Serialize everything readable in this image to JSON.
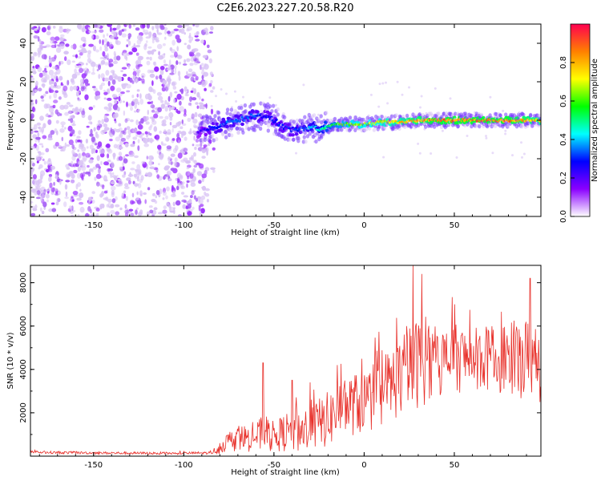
{
  "title": "C2E6.2023.227.20.58.R20",
  "colors": {
    "spectrum_low": "#9b30ff",
    "spectrum_pale": "#d9c4f5",
    "snr_line": "#e8302a",
    "axis": "#000000"
  },
  "chart_data": [
    {
      "type": "heatmap",
      "title": "C2E6.2023.227.20.58.R20",
      "xlabel": "Height of straight line (km)",
      "ylabel": "Frequency (Hz)",
      "xlim": [
        -185,
        98
      ],
      "ylim": [
        -50,
        50
      ],
      "x_ticks": [
        -150,
        -100,
        -50,
        0,
        50
      ],
      "y_ticks": [
        -40,
        -20,
        0,
        20,
        40
      ],
      "colorbar": {
        "label": "Normalized spectral amplitude",
        "range": [
          0,
          1
        ],
        "ticks": [
          "0.0",
          "0.2",
          "0.4",
          "0.6",
          "0.8"
        ],
        "stops": [
          "#ffffff",
          "#8a00ff",
          "#0000ff",
          "#00ffff",
          "#00ff00",
          "#ffff00",
          "#ff8000",
          "#ff0050"
        ]
      },
      "noise_region_x": [
        -185,
        -87
      ],
      "signal_trace": {
        "x": [
          -92,
          -85,
          -78,
          -70,
          -62,
          -55,
          -50,
          -45,
          -40,
          -35,
          -30,
          -25,
          -20,
          -15,
          -10,
          -5,
          0,
          10,
          20,
          30,
          40,
          50,
          60,
          70,
          80,
          90,
          98
        ],
        "freq_hz": [
          -6,
          -4,
          -2,
          0,
          2,
          2,
          0,
          -3,
          -5,
          -5,
          -4,
          -4,
          -3,
          -2,
          -2,
          -2,
          -2,
          -1,
          -1,
          0,
          0,
          0,
          0,
          0,
          0,
          0,
          0
        ],
        "amplitude": [
          0.2,
          0.3,
          0.35,
          0.35,
          0.35,
          0.3,
          0.3,
          0.3,
          0.3,
          0.35,
          0.4,
          0.45,
          0.55,
          0.6,
          0.65,
          0.7,
          0.7,
          0.75,
          0.8,
          0.85,
          0.9,
          0.9,
          0.9,
          0.9,
          0.9,
          0.85,
          0.8
        ]
      }
    },
    {
      "type": "line",
      "xlabel": "Height of straight line (km)",
      "ylabel": "SNR (10 * v/v)",
      "xlim": [
        -185,
        98
      ],
      "ylim": [
        0,
        8800
      ],
      "x_ticks": [
        -150,
        -100,
        -50,
        0,
        50
      ],
      "y_ticks": [
        2000,
        4000,
        6000,
        8000
      ],
      "envelope": {
        "x": [
          -185,
          -150,
          -110,
          -85,
          -80,
          -75,
          -70,
          -60,
          -55,
          -50,
          -40,
          -35,
          -30,
          -20,
          -10,
          0,
          10,
          20,
          25,
          30,
          40,
          50,
          60,
          70,
          80,
          90,
          98
        ],
        "mean": [
          180,
          150,
          130,
          150,
          400,
          700,
          800,
          900,
          1000,
          900,
          1200,
          1200,
          1300,
          1700,
          2300,
          2500,
          3000,
          3700,
          4000,
          4300,
          4300,
          4500,
          4500,
          4500,
          4500,
          4500,
          4400
        ],
        "spread": [
          60,
          60,
          60,
          60,
          300,
          450,
          600,
          700,
          900,
          700,
          1000,
          1100,
          1100,
          1300,
          1400,
          1500,
          1700,
          1900,
          2000,
          2100,
          1700,
          1600,
          1500,
          1500,
          1700,
          1900,
          2000
        ]
      },
      "peaks": [
        {
          "x": -56,
          "y": 4300
        },
        {
          "x": -40,
          "y": 3500
        },
        {
          "x": -30,
          "y": 3400
        },
        {
          "x": -15,
          "y": 4200
        },
        {
          "x": 27,
          "y": 8800
        },
        {
          "x": 32,
          "y": 8400
        },
        {
          "x": 92,
          "y": 8200
        }
      ]
    }
  ]
}
